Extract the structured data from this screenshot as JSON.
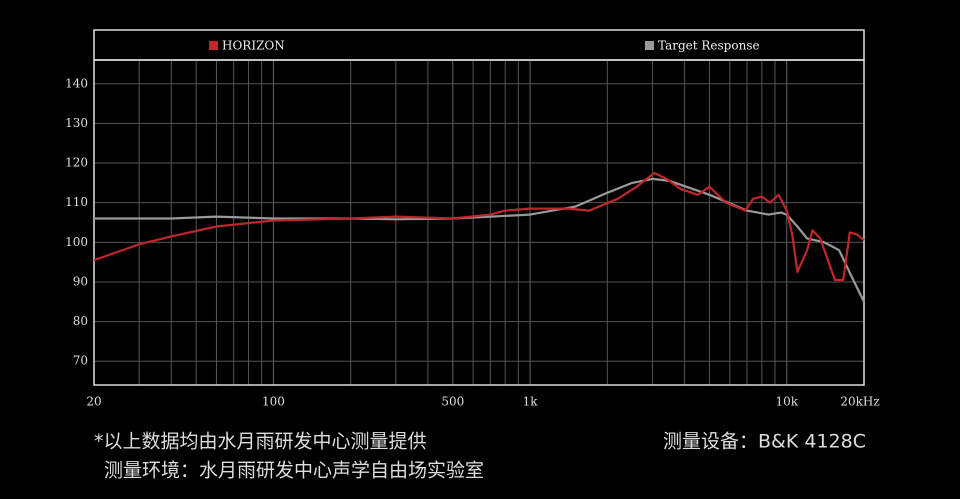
{
  "chart_data": {
    "type": "line",
    "xscale": "log",
    "xlim": [
      20,
      20000
    ],
    "ylim": [
      64,
      146
    ],
    "xticks": [
      20,
      100,
      500,
      {
        "value": 1000,
        "label": "1k"
      },
      {
        "value": 10000,
        "label": "10k"
      },
      {
        "value": 20000,
        "label": "20kHz"
      }
    ],
    "xminor": [
      30,
      40,
      50,
      60,
      70,
      80,
      90,
      200,
      300,
      400,
      600,
      700,
      800,
      900,
      2000,
      3000,
      4000,
      5000,
      6000,
      7000,
      8000,
      9000
    ],
    "yticks": [
      70,
      80,
      90,
      100,
      110,
      120,
      130,
      140
    ],
    "grid": true,
    "series": [
      {
        "name": "HORIZON",
        "color": "#c0272d",
        "x": [
          20,
          30,
          40,
          60,
          100,
          200,
          300,
          500,
          700,
          800,
          1000,
          1400,
          1700,
          2200,
          2600,
          3050,
          3400,
          3850,
          4500,
          5000,
          5800,
          6900,
          7400,
          8000,
          8600,
          9300,
          10000,
          10500,
          11000,
          12000,
          12600,
          13500,
          14200,
          15400,
          16600,
          17600,
          18800,
          20000
        ],
        "values": [
          95.5,
          99.5,
          101.5,
          104,
          105.5,
          106,
          106.5,
          106,
          107,
          108,
          108.5,
          108.5,
          108,
          111,
          114,
          117.5,
          116,
          113.5,
          112,
          114,
          110,
          108,
          111,
          111.5,
          110,
          112,
          108,
          102,
          92.5,
          98,
          103,
          101,
          97,
          90.5,
          90.5,
          102.5,
          102,
          100.5
        ]
      },
      {
        "name": "Target Response",
        "color": "#9a9a9a",
        "x": [
          20,
          40,
          60,
          100,
          200,
          300,
          500,
          1000,
          1500,
          2000,
          2500,
          3000,
          3500,
          5000,
          7000,
          8500,
          9500,
          10000,
          11000,
          12000,
          14000,
          16000,
          18000,
          20000
        ],
        "values": [
          106,
          106,
          106.5,
          106,
          106,
          105.8,
          106,
          107,
          109,
          112.5,
          115,
          116,
          115.5,
          112,
          108,
          107,
          107.5,
          107,
          104,
          101,
          100,
          98,
          91,
          85
        ]
      }
    ],
    "source_note": "*以上数据均由水月雨研发中心测量提供",
    "environment_note": "测量环境：水月雨研发中心声学自由场实验室",
    "equipment_note": "测量设备：B&K 4128C"
  }
}
